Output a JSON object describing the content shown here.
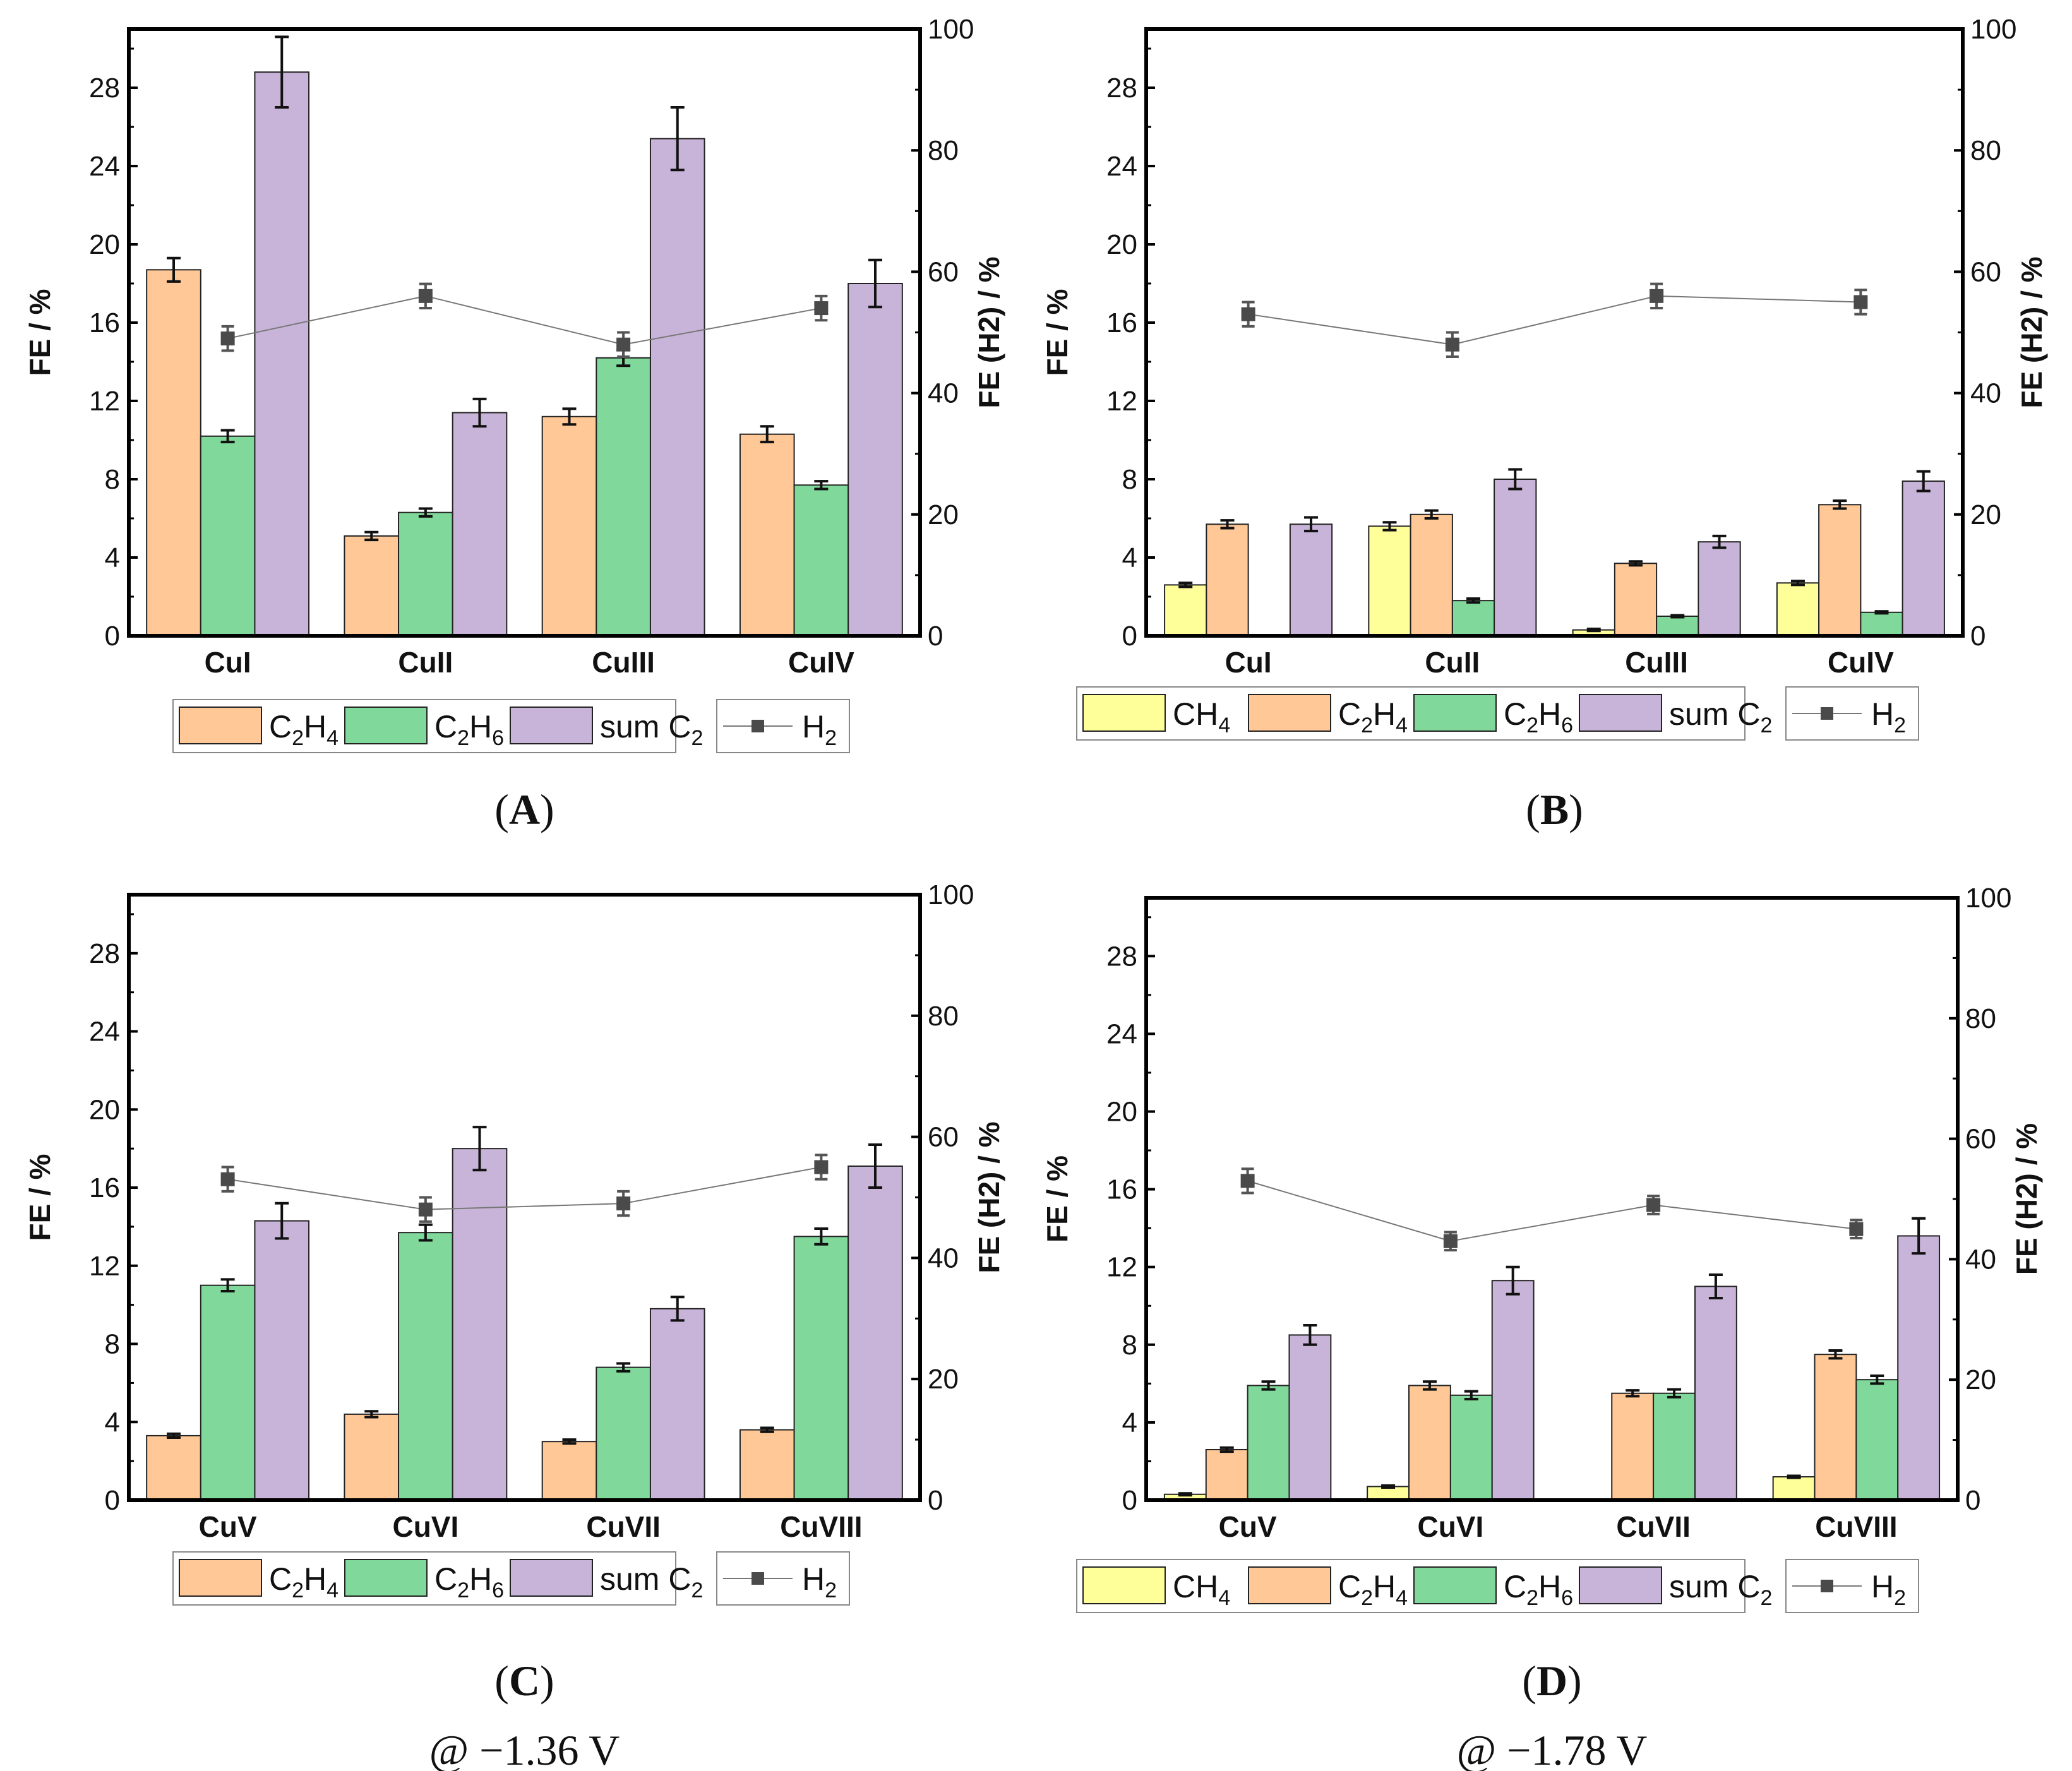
{
  "colors": {
    "CH4": "#ffff99",
    "C2H4": "#ffc896",
    "C2H6": "#80d99b",
    "sum C2": "#c8b4d8",
    "H2": "#4a4a4a"
  },
  "chart_data": [
    {
      "type": "bar",
      "panel_label": "A",
      "caption_lines": [],
      "ylabel": "FE / %",
      "y2label": "FE (H2) / %",
      "ylim": [
        0,
        31
      ],
      "yticks": [
        0,
        4,
        8,
        12,
        16,
        20,
        24,
        28
      ],
      "y2lim": [
        0,
        100
      ],
      "y2ticks": [
        0,
        20,
        40,
        60,
        80,
        100
      ],
      "categories": [
        "CuI",
        "CuII",
        "CuIII",
        "CuIV"
      ],
      "series": [
        {
          "name": "C2H4",
          "values": [
            18.7,
            5.1,
            11.2,
            10.3
          ],
          "errors": [
            0.6,
            0.2,
            0.4,
            0.4
          ]
        },
        {
          "name": "C2H6",
          "values": [
            10.2,
            6.3,
            14.2,
            7.7
          ],
          "errors": [
            0.3,
            0.2,
            0.4,
            0.2
          ]
        },
        {
          "name": "sum C2",
          "values": [
            28.8,
            11.4,
            25.4,
            18.0
          ],
          "errors": [
            1.8,
            0.7,
            1.6,
            1.2
          ]
        }
      ],
      "line_series": {
        "name": "H2",
        "axis": "right",
        "values": [
          49,
          56,
          48,
          54
        ],
        "errors": [
          2,
          2,
          2,
          2
        ]
      }
    },
    {
      "type": "bar",
      "panel_label": "B",
      "caption_lines": [],
      "ylabel": "FE / %",
      "y2label": "FE (H2) / %",
      "ylim": [
        0,
        31
      ],
      "yticks": [
        0,
        4,
        8,
        12,
        16,
        20,
        24,
        28
      ],
      "y2lim": [
        0,
        100
      ],
      "y2ticks": [
        0,
        20,
        40,
        60,
        80,
        100
      ],
      "categories": [
        "CuI",
        "CuII",
        "CuIII",
        "CuIV"
      ],
      "series": [
        {
          "name": "CH4",
          "values": [
            2.6,
            5.6,
            0.3,
            2.7
          ],
          "errors": [
            0.1,
            0.2,
            0.05,
            0.1
          ]
        },
        {
          "name": "C2H4",
          "values": [
            5.7,
            6.2,
            3.7,
            6.7
          ],
          "errors": [
            0.2,
            0.2,
            0.1,
            0.2
          ]
        },
        {
          "name": "C2H6",
          "values": [
            0,
            1.8,
            1.0,
            1.2
          ],
          "errors": [
            0,
            0.1,
            0.05,
            0.05
          ]
        },
        {
          "name": "sum C2",
          "values": [
            5.7,
            8.0,
            4.8,
            7.9
          ],
          "errors": [
            0.35,
            0.5,
            0.3,
            0.5
          ]
        }
      ],
      "line_series": {
        "name": "H2",
        "axis": "right",
        "values": [
          53,
          48,
          56,
          55
        ],
        "errors": [
          2,
          2,
          2,
          2
        ]
      }
    },
    {
      "type": "bar",
      "panel_label": "C",
      "caption_lines": [
        "@ −1.36 V"
      ],
      "ylabel": "FE / %",
      "y2label": "FE (H2) / %",
      "ylim": [
        0,
        31
      ],
      "yticks": [
        0,
        4,
        8,
        12,
        16,
        20,
        24,
        28
      ],
      "y2lim": [
        0,
        100
      ],
      "y2ticks": [
        0,
        20,
        40,
        60,
        80,
        100
      ],
      "categories": [
        "CuV",
        "CuVI",
        "CuVII",
        "CuVIII"
      ],
      "series": [
        {
          "name": "C2H4",
          "values": [
            3.3,
            4.4,
            3.0,
            3.6
          ],
          "errors": [
            0.1,
            0.15,
            0.1,
            0.1
          ]
        },
        {
          "name": "C2H6",
          "values": [
            11.0,
            13.7,
            6.8,
            13.5
          ],
          "errors": [
            0.3,
            0.4,
            0.2,
            0.4
          ]
        },
        {
          "name": "sum C2",
          "values": [
            14.3,
            18.0,
            9.8,
            17.1
          ],
          "errors": [
            0.9,
            1.1,
            0.6,
            1.1
          ]
        }
      ],
      "line_series": {
        "name": "H2",
        "axis": "right",
        "values": [
          53,
          48,
          49,
          55
        ],
        "errors": [
          2,
          2,
          2,
          2
        ]
      }
    },
    {
      "type": "bar",
      "panel_label": "D",
      "caption_lines": [
        "@ −1.78 V"
      ],
      "ylabel": "FE / %",
      "y2label": "FE (H2) / %",
      "ylim": [
        0,
        31
      ],
      "yticks": [
        0,
        4,
        8,
        12,
        16,
        20,
        24,
        28
      ],
      "y2lim": [
        0,
        100
      ],
      "y2ticks": [
        0,
        20,
        40,
        60,
        80,
        100
      ],
      "categories": [
        "CuV",
        "CuVI",
        "CuVII",
        "CuVIII"
      ],
      "series": [
        {
          "name": "CH4",
          "values": [
            0.3,
            0.7,
            0,
            1.2
          ],
          "errors": [
            0.05,
            0.05,
            0,
            0.05
          ]
        },
        {
          "name": "C2H4",
          "values": [
            2.6,
            5.9,
            5.5,
            7.5
          ],
          "errors": [
            0.1,
            0.2,
            0.15,
            0.2
          ]
        },
        {
          "name": "C2H6",
          "values": [
            5.9,
            5.4,
            5.5,
            6.2
          ],
          "errors": [
            0.2,
            0.2,
            0.2,
            0.2
          ]
        },
        {
          "name": "sum C2",
          "values": [
            8.5,
            11.3,
            11.0,
            13.6
          ],
          "errors": [
            0.5,
            0.7,
            0.6,
            0.9
          ]
        }
      ],
      "line_series": {
        "name": "H2",
        "axis": "right",
        "values": [
          53,
          43,
          49,
          45
        ],
        "errors": [
          2,
          1.5,
          1.5,
          1.5
        ]
      }
    }
  ]
}
